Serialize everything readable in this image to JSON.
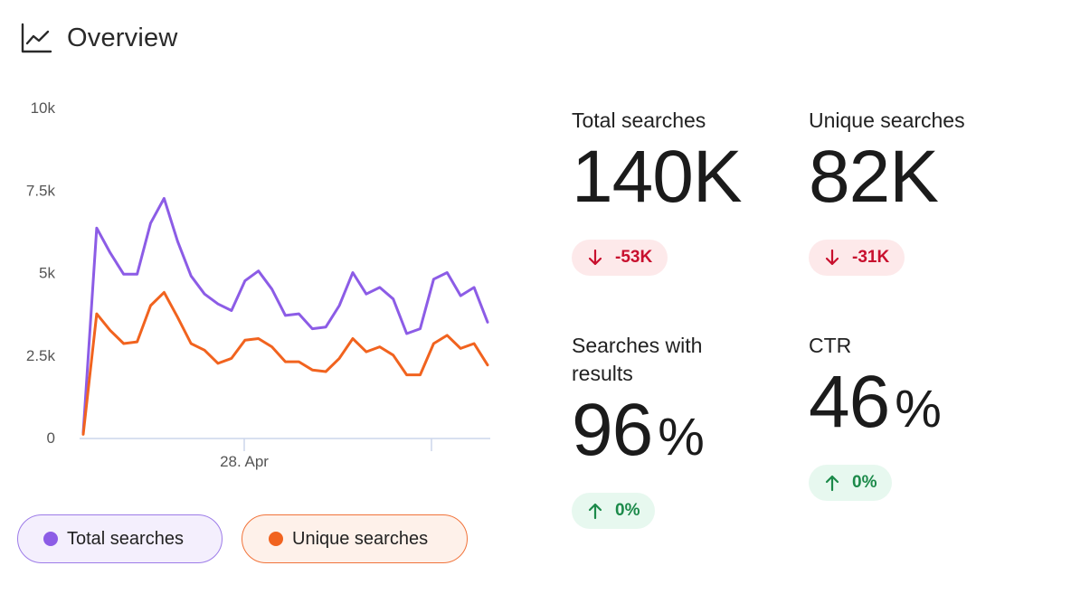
{
  "header": {
    "title": "Overview",
    "icon": "line-chart-icon"
  },
  "colors": {
    "total": "#8c5ce6",
    "unique": "#f1631f",
    "down": "#c8102e",
    "up": "#1c8a4a"
  },
  "legend": [
    {
      "label": "Total searches",
      "color": "#8c5ce6"
    },
    {
      "label": "Unique searches",
      "color": "#f1631f"
    }
  ],
  "metrics": [
    {
      "label": "Total searches",
      "value": "140K",
      "unit": "",
      "delta": "-53K",
      "direction": "down"
    },
    {
      "label": "Unique searches",
      "value": "82K",
      "unit": "",
      "delta": "-31K",
      "direction": "down"
    },
    {
      "label": "Searches with results",
      "value": "96",
      "unit": "%",
      "delta": "0%",
      "direction": "up"
    },
    {
      "label": "CTR",
      "value": "46",
      "unit": "%",
      "delta": "0%",
      "direction": "up"
    }
  ],
  "chart_data": {
    "type": "line",
    "title": "",
    "xlabel": "",
    "ylabel": "",
    "ylim": [
      0,
      10000
    ],
    "yticks": [
      0,
      2500,
      5000,
      7500,
      10000
    ],
    "yticklabels": [
      "0",
      "2.5k",
      "5k",
      "7.5k",
      "10k"
    ],
    "xticklabels": [
      "28. Apr"
    ],
    "grid": false,
    "series": [
      {
        "name": "Total searches",
        "color": "#8c5ce6",
        "values": [
          150,
          6350,
          5600,
          4950,
          4950,
          6500,
          7250,
          5950,
          4900,
          4350,
          4050,
          3850,
          4750,
          5050,
          4500,
          3700,
          3750,
          3300,
          3350,
          4000,
          5000,
          4350,
          4550,
          4200,
          3150,
          3300,
          4800,
          5000,
          4300,
          4550,
          3500
        ]
      },
      {
        "name": "Unique searches",
        "color": "#f1631f",
        "values": [
          100,
          3750,
          3250,
          2850,
          2900,
          4000,
          4400,
          3650,
          2850,
          2650,
          2250,
          2400,
          2950,
          3000,
          2750,
          2300,
          2300,
          2050,
          2000,
          2400,
          3000,
          2600,
          2750,
          2500,
          1900,
          1900,
          2850,
          3100,
          2700,
          2850,
          2200
        ]
      }
    ]
  }
}
